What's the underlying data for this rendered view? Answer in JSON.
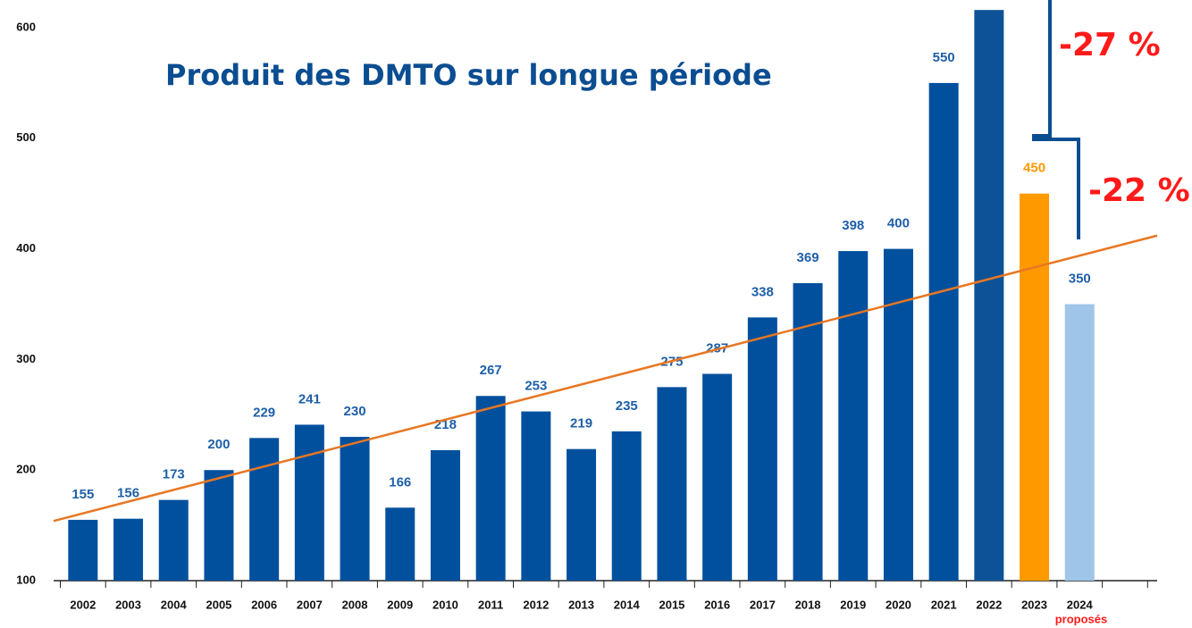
{
  "chart_data": {
    "type": "bar",
    "title": "Produit des DMTO sur longue période",
    "categories": [
      "2002",
      "2003",
      "2004",
      "2005",
      "2006",
      "2007",
      "2008",
      "2009",
      "2010",
      "2011",
      "2012",
      "2013",
      "2014",
      "2015",
      "2016",
      "2017",
      "2018",
      "2019",
      "2020",
      "2021",
      "2022",
      "2023",
      "2024"
    ],
    "values": [
      155,
      156,
      173,
      200,
      229,
      241,
      230,
      166,
      218,
      267,
      253,
      219,
      235,
      275,
      287,
      338,
      369,
      398,
      400,
      550,
      616,
      450,
      350
    ],
    "value_labels": [
      "155",
      "156",
      "173",
      "200",
      "229",
      "241",
      "230",
      "166",
      "218",
      "267",
      "253",
      "219",
      "235",
      "275",
      "287",
      "338",
      "369",
      "398",
      "400",
      "550",
      null,
      "450",
      "350"
    ],
    "colors": [
      "#00509e",
      "#00509e",
      "#00509e",
      "#00509e",
      "#00509e",
      "#00509e",
      "#00509e",
      "#00509e",
      "#00509e",
      "#00509e",
      "#00509e",
      "#00509e",
      "#00509e",
      "#00509e",
      "#00509e",
      "#00509e",
      "#00509e",
      "#00509e",
      "#00509e",
      "#00509e",
      "#0d5296",
      "#ff9900",
      "#9fc5e8"
    ],
    "label_colors": [
      "#1f5fa8",
      "#1f5fa8",
      "#1f5fa8",
      "#1f5fa8",
      "#1f5fa8",
      "#1f5fa8",
      "#1f5fa8",
      "#1f5fa8",
      "#1f5fa8",
      "#1f5fa8",
      "#1f5fa8",
      "#1f5fa8",
      "#1f5fa8",
      "#1f5fa8",
      "#1f5fa8",
      "#1f5fa8",
      "#1f5fa8",
      "#1f5fa8",
      "#1f5fa8",
      "#1f5fa8",
      "#1f5fa8",
      "#ff9900",
      "#1f5fa8"
    ],
    "ylim": [
      100,
      600
    ],
    "yticks": [
      100,
      200,
      300,
      400,
      500,
      600
    ],
    "grid": false,
    "trend": {
      "start": 154,
      "end": 412,
      "color": "#e87722"
    },
    "annotations": [
      "-27 %",
      "-22 %",
      "proposés"
    ]
  }
}
